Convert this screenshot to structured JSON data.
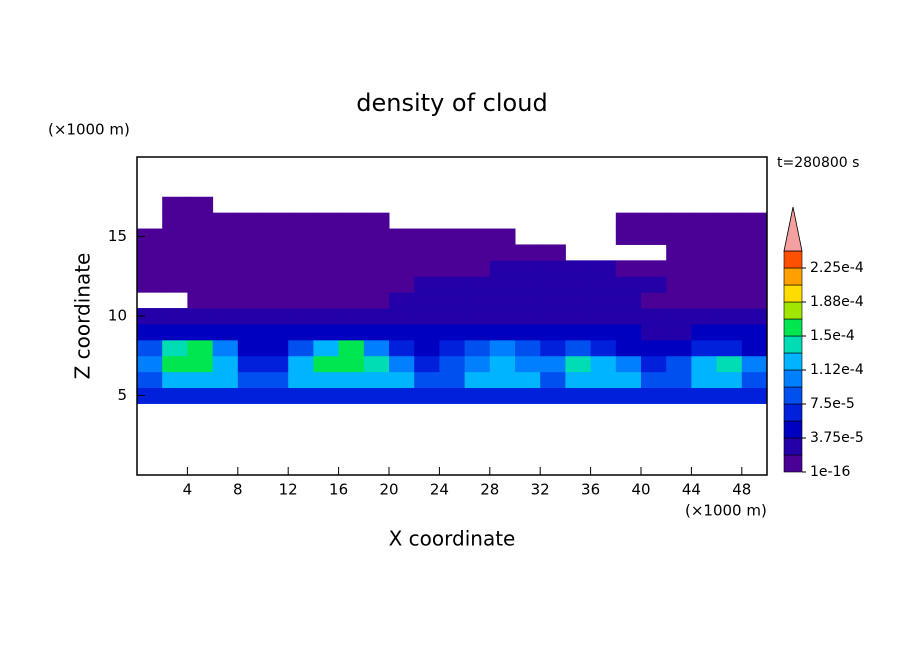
{
  "chart_data": {
    "type": "contour",
    "title": "density of cloud",
    "annotation": "t=280800 s",
    "xlabel": "X coordinate",
    "ylabel": "Z coordinate",
    "x_unit": "(×1000 m)",
    "y_unit": "(×1000 m)",
    "xlim": [
      0,
      50
    ],
    "ylim": [
      0,
      20
    ],
    "xticks": [
      4,
      8,
      12,
      16,
      20,
      24,
      28,
      32,
      36,
      40,
      44,
      48
    ],
    "yticks": [
      5,
      10,
      15
    ],
    "x": [
      1,
      3,
      5,
      7,
      9,
      11,
      13,
      15,
      17,
      19,
      21,
      23,
      25,
      27,
      29,
      31,
      33,
      35,
      37,
      39,
      41,
      43,
      45,
      47,
      49
    ],
    "y": [
      5,
      6,
      7,
      8,
      9,
      10,
      11,
      12,
      13,
      14,
      15,
      16,
      17
    ],
    "z": [
      [
        6e-05,
        6e-05,
        6e-05,
        6e-05,
        6e-05,
        6e-05,
        6e-05,
        6e-05,
        6e-05,
        6e-05,
        6e-05,
        6e-05,
        6e-05,
        6e-05,
        6e-05,
        6e-05,
        6e-05,
        6e-05,
        6e-05,
        6e-05,
        6e-05,
        6e-05,
        6e-05,
        6e-05,
        6e-05
      ],
      [
        9e-05,
        0.00012,
        0.00012,
        0.00012,
        9e-05,
        9e-05,
        0.00012,
        0.00012,
        0.00012,
        0.00012,
        0.00012,
        9e-05,
        9e-05,
        0.00012,
        0.00012,
        0.00012,
        9e-05,
        0.00012,
        0.00012,
        0.00012,
        9e-05,
        9e-05,
        0.00012,
        0.00012,
        9e-05
      ],
      [
        0.0001,
        0.00015,
        0.00016,
        0.00013,
        6e-05,
        6e-05,
        0.00013,
        0.00015,
        0.00016,
        0.00014,
        0.00011,
        6e-05,
        8e-05,
        0.00011,
        0.00012,
        0.0001,
        0.00011,
        0.000145,
        0.00012,
        0.0001,
        6e-05,
        8e-05,
        0.00012,
        0.000135,
        0.0001
      ],
      [
        9e-05,
        0.00014,
        0.000165,
        0.0001,
        5e-05,
        5e-05,
        9e-05,
        0.00013,
        0.000155,
        0.00011,
        7e-05,
        5e-05,
        6e-05,
        9e-05,
        0.0001,
        8e-05,
        7e-05,
        9e-05,
        7e-05,
        5e-05,
        4e-05,
        4e-05,
        6e-05,
        7e-05,
        5e-05
      ],
      [
        4e-05,
        4e-05,
        4e-05,
        4e-05,
        4e-05,
        4e-05,
        4e-05,
        4e-05,
        4e-05,
        4e-05,
        4e-05,
        4e-05,
        4e-05,
        4e-05,
        4e-05,
        4e-05,
        4e-05,
        4e-05,
        4e-05,
        4e-05,
        2e-05,
        2e-05,
        4e-05,
        4e-05,
        4e-05
      ],
      [
        3e-05,
        3e-05,
        3e-05,
        3e-05,
        3e-05,
        3e-05,
        3e-05,
        3e-05,
        3e-05,
        3e-05,
        3e-05,
        3e-05,
        3e-05,
        3e-05,
        3e-05,
        3e-05,
        3e-05,
        3e-05,
        3e-05,
        3e-05,
        3e-05,
        3e-05,
        3e-05,
        3e-05,
        3e-05
      ],
      [
        null,
        null,
        1e-05,
        1.5e-05,
        1.5e-05,
        1.5e-05,
        1.5e-05,
        1.5e-05,
        1.5e-05,
        1.5e-05,
        2.5e-05,
        2.5e-05,
        2.5e-05,
        2.5e-05,
        2.5e-05,
        2.5e-05,
        2.5e-05,
        2.5e-05,
        2.5e-05,
        2.5e-05,
        1e-05,
        1e-05,
        1e-05,
        1e-05,
        1e-05
      ],
      [
        1e-05,
        1e-05,
        1e-05,
        1e-05,
        1e-05,
        1e-05,
        1e-05,
        1e-05,
        1e-05,
        1e-05,
        1e-05,
        3e-05,
        3e-05,
        3e-05,
        3e-05,
        3e-05,
        3e-05,
        3e-05,
        3e-05,
        3e-05,
        3e-05,
        1e-05,
        1e-05,
        1e-05,
        1e-05
      ],
      [
        8e-06,
        8e-06,
        8e-06,
        8e-06,
        8e-06,
        8e-06,
        8e-06,
        8e-06,
        8e-06,
        8e-06,
        8e-06,
        8e-06,
        8e-06,
        8e-06,
        2e-05,
        2e-05,
        2e-05,
        2e-05,
        2e-05,
        8e-06,
        8e-06,
        8e-06,
        8e-06,
        8e-06,
        8e-06
      ],
      [
        5e-06,
        5e-06,
        5e-06,
        5e-06,
        5e-06,
        5e-06,
        5e-06,
        5e-06,
        5e-06,
        5e-06,
        5e-06,
        5e-06,
        5e-06,
        5e-06,
        5e-06,
        5e-06,
        5e-06,
        null,
        null,
        null,
        null,
        5e-06,
        5e-06,
        5e-06,
        5e-06
      ],
      [
        5e-06,
        5e-06,
        5e-06,
        5e-06,
        5e-06,
        5e-06,
        5e-06,
        5e-06,
        5e-06,
        5e-06,
        5e-06,
        5e-06,
        5e-06,
        5e-06,
        5e-06,
        null,
        null,
        null,
        null,
        5e-06,
        5e-06,
        5e-06,
        5e-06,
        5e-06,
        5e-06
      ],
      [
        null,
        5e-06,
        5e-06,
        5e-06,
        5e-06,
        5e-06,
        5e-06,
        5e-06,
        5e-06,
        5e-06,
        null,
        null,
        null,
        null,
        null,
        null,
        null,
        null,
        null,
        5e-06,
        5e-06,
        5e-06,
        5e-06,
        5e-06,
        5e-06
      ],
      [
        null,
        5e-06,
        5e-06,
        null,
        null,
        null,
        null,
        null,
        null,
        null,
        null,
        null,
        null,
        null,
        null,
        null,
        null,
        null,
        null,
        null,
        null,
        null,
        null,
        null,
        null
      ]
    ],
    "levels": [
      1e-16,
      1.875e-05,
      3.75e-05,
      5.625e-05,
      7.5e-05,
      9.375e-05,
      0.0001125,
      0.00013125,
      0.00015,
      0.00016875,
      0.0001875,
      0.00020625,
      0.000225,
      0.00024375
    ],
    "colors": [
      "#4b0096",
      "#2300a8",
      "#0000c0",
      "#0020dc",
      "#0050f0",
      "#0080ff",
      "#00b4ff",
      "#00dcb4",
      "#00e650",
      "#a0e600",
      "#ffdc00",
      "#ffa000",
      "#ff5000"
    ],
    "overflow_color": "#f4a0a0",
    "colorbar_ticks": [
      {
        "value": 1e-16,
        "label": "1e-16"
      },
      {
        "value": 3.75e-05,
        "label": "3.75e-5"
      },
      {
        "value": 7.5e-05,
        "label": "7.5e-5"
      },
      {
        "value": 0.0001125,
        "label": "1.12e-4"
      },
      {
        "value": 0.00015,
        "label": "1.5e-4"
      },
      {
        "value": 0.0001875,
        "label": "1.88e-4"
      },
      {
        "value": 0.000225,
        "label": "2.25e-4"
      }
    ]
  }
}
